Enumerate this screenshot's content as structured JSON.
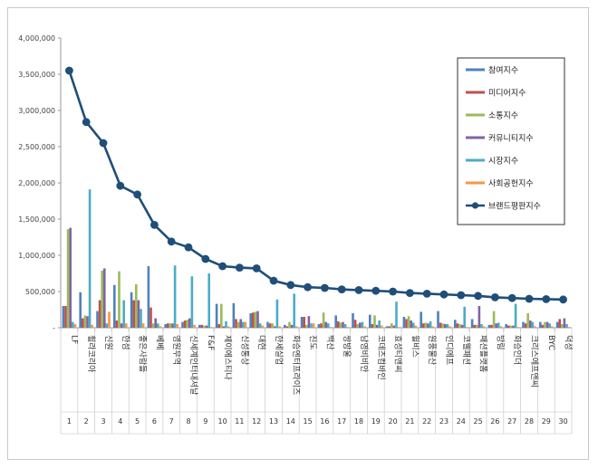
{
  "chart_data": {
    "type": "bar",
    "title": "",
    "xlabel": "",
    "ylabel": "",
    "ylim": [
      0,
      4000000
    ],
    "yticks": [
      "4,000,000",
      "3,500,000",
      "3,000,000",
      "2,500,000",
      "2,000,000",
      "1,500,000",
      "1,000,000",
      "500,000",
      "-"
    ],
    "grid": false,
    "legend_position": "top-right",
    "categories": [
      "LF",
      "휠라코리아",
      "신원",
      "한섬",
      "좋은사람들",
      "베베",
      "영원무역",
      "신세계인터내셔날",
      "F&F",
      "제이에스티나",
      "신성통상",
      "대현",
      "한세실업",
      "화승엔터프라이즈",
      "진도",
      "백산",
      "쌍방울",
      "남영비비안",
      "코데즈컴바인",
      "효성티앤씨",
      "윌비스",
      "원풍물산",
      "인디에프",
      "코웰패션",
      "패션플랫폼",
      "방림",
      "화승인더",
      "크리스에프앤씨",
      "BYC",
      "덕성"
    ],
    "numbers": [
      "1",
      "2",
      "3",
      "4",
      "5",
      "6",
      "7",
      "8",
      "9",
      "10",
      "11",
      "12",
      "13",
      "14",
      "15",
      "16",
      "17",
      "18",
      "19",
      "20",
      "21",
      "22",
      "23",
      "24",
      "25",
      "26",
      "27",
      "28",
      "29",
      "30"
    ],
    "series": [
      {
        "name": "참여지수",
        "kind": "bar",
        "color": "#4f81bd",
        "values": [
          300000,
          490000,
          230000,
          590000,
          490000,
          850000,
          50000,
          80000,
          40000,
          330000,
          340000,
          200000,
          80000,
          40000,
          150000,
          50000,
          170000,
          200000,
          180000,
          20000,
          150000,
          220000,
          230000,
          110000,
          120000,
          40000,
          50000,
          80000,
          80000,
          80000
        ]
      },
      {
        "name": "미디어지수",
        "kind": "bar",
        "color": "#c0504d",
        "values": [
          300000,
          130000,
          380000,
          100000,
          380000,
          280000,
          60000,
          100000,
          40000,
          50000,
          120000,
          210000,
          60000,
          20000,
          150000,
          60000,
          90000,
          110000,
          50000,
          20000,
          120000,
          60000,
          70000,
          60000,
          40000,
          40000,
          30000,
          60000,
          40000,
          120000
        ]
      },
      {
        "name": "소통지수",
        "kind": "bar",
        "color": "#9bbb59",
        "values": [
          1360000,
          170000,
          790000,
          780000,
          600000,
          60000,
          60000,
          110000,
          30000,
          330000,
          80000,
          220000,
          60000,
          80000,
          40000,
          210000,
          70000,
          50000,
          170000,
          60000,
          160000,
          70000,
          60000,
          50000,
          40000,
          230000,
          30000,
          200000,
          80000,
          50000
        ]
      },
      {
        "name": "커뮤니티지수",
        "kind": "bar",
        "color": "#8064a2",
        "values": [
          1380000,
          160000,
          820000,
          60000,
          380000,
          130000,
          60000,
          130000,
          30000,
          20000,
          120000,
          230000,
          20000,
          40000,
          160000,
          80000,
          80000,
          70000,
          40000,
          30000,
          100000,
          60000,
          50000,
          40000,
          300000,
          60000,
          30000,
          100000,
          80000,
          130000
        ]
      },
      {
        "name": "시장지수",
        "kind": "bar",
        "color": "#4bacc6",
        "values": [
          80000,
          1910000,
          60000,
          380000,
          260000,
          60000,
          860000,
          710000,
          750000,
          90000,
          80000,
          60000,
          390000,
          470000,
          60000,
          60000,
          50000,
          80000,
          100000,
          360000,
          70000,
          90000,
          50000,
          290000,
          50000,
          70000,
          330000,
          80000,
          60000,
          50000
        ]
      },
      {
        "name": "사회공헌지수",
        "kind": "bar",
        "color": "#f79646",
        "values": [
          50000,
          40000,
          220000,
          60000,
          60000,
          20000,
          50000,
          40000,
          10000,
          20000,
          80000,
          30000,
          20000,
          20000,
          60000,
          10000,
          10000,
          20000,
          30000,
          10000,
          30000,
          20000,
          20000,
          10000,
          20000,
          20000,
          10000,
          20000,
          20000,
          10000
        ]
      },
      {
        "name": "브랜드평판지수",
        "kind": "line",
        "color": "#1f4e79",
        "values": [
          3550000,
          2840000,
          2550000,
          1960000,
          1840000,
          1420000,
          1190000,
          1110000,
          950000,
          850000,
          830000,
          820000,
          650000,
          590000,
          560000,
          550000,
          530000,
          520000,
          510000,
          500000,
          480000,
          470000,
          460000,
          450000,
          440000,
          420000,
          410000,
          400000,
          395000,
          390000
        ]
      }
    ]
  }
}
